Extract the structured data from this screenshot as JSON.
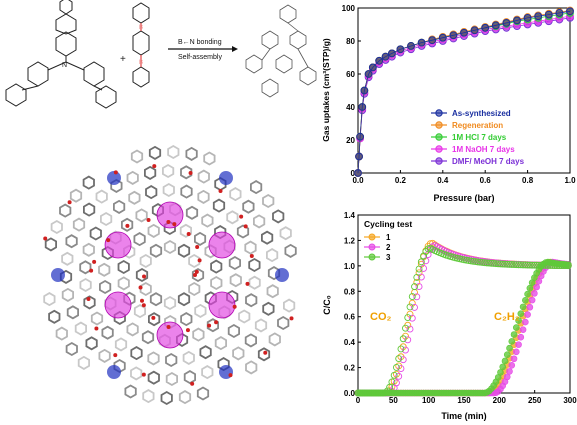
{
  "scheme": {
    "arrow_label_top": "B←N bonding",
    "arrow_label_bottom": "Self-assembly",
    "plus": "+"
  },
  "colors": {
    "as_synthesized": "#1a2fa0",
    "regeneration": "#f08a1e",
    "hcl": "#33cc33",
    "naoh": "#e833e8",
    "dmf": "#7b2fd6",
    "cyc1": "#f5a623",
    "cyc2": "#e64be6",
    "cyc3": "#5fc93a",
    "co2_label": "#f0a000",
    "c2h2_label": "#f0a000"
  },
  "chart_data": [
    {
      "type": "line",
      "xlabel": "Pressure (bar)",
      "ylabel": "Gas uptakes (cm³(STP)/g)",
      "xlim": [
        0,
        1.0
      ],
      "ylim": [
        0,
        100
      ],
      "xticks": [
        "0.0",
        "0.2",
        "0.4",
        "0.6",
        "0.8",
        "1.0"
      ],
      "yticks": [
        "0",
        "20",
        "40",
        "60",
        "80",
        "100"
      ],
      "legend_position": "bottom-right",
      "x": [
        0.0,
        0.005,
        0.01,
        0.02,
        0.03,
        0.05,
        0.07,
        0.1,
        0.13,
        0.16,
        0.2,
        0.25,
        0.3,
        0.35,
        0.4,
        0.45,
        0.5,
        0.55,
        0.6,
        0.65,
        0.7,
        0.75,
        0.8,
        0.85,
        0.9,
        0.95,
        1.0
      ],
      "series": [
        {
          "name": "As-synthesized",
          "values": [
            0,
            10,
            22,
            40,
            50,
            60,
            64,
            68,
            70.5,
            72.5,
            75,
            77,
            79,
            80.5,
            82,
            83.5,
            85,
            86.5,
            88,
            89.5,
            91,
            92.5,
            94,
            95,
            96,
            97,
            98
          ]
        },
        {
          "name": "Regeneration",
          "values": [
            0,
            10,
            22,
            40,
            50,
            60,
            64,
            68,
            70.5,
            72.5,
            75,
            77,
            79,
            81,
            82.5,
            84,
            85.5,
            87,
            88.5,
            90,
            91.5,
            93,
            94.5,
            95.5,
            96.5,
            97.5,
            98.5
          ]
        },
        {
          "name": "1M HCl 7 days",
          "values": [
            0,
            10,
            22,
            40,
            50,
            60,
            64,
            68,
            70.5,
            72.5,
            75,
            77,
            79,
            80.5,
            82,
            83.5,
            85,
            86.5,
            88,
            89,
            90.5,
            92,
            93,
            94,
            95,
            96,
            97
          ]
        },
        {
          "name": "1M NaOH 7 days",
          "values": [
            0,
            10,
            21,
            39,
            49,
            59,
            63,
            67,
            69.5,
            71.5,
            74,
            76,
            78,
            79.5,
            81,
            82.5,
            84,
            85.5,
            87,
            88,
            89,
            90,
            91,
            92,
            93,
            94,
            95
          ]
        },
        {
          "name": "DMF/ MeOH 7 days",
          "values": [
            0,
            10,
            21,
            38,
            48,
            58,
            62,
            66,
            68.5,
            70.5,
            73,
            75,
            77,
            78.5,
            80,
            81.5,
            83,
            84.5,
            86,
            87,
            88,
            89,
            90,
            91,
            92,
            93,
            94
          ]
        }
      ]
    },
    {
      "type": "scatter",
      "xlabel": "Time (min)",
      "ylabel": "C/C₀",
      "xlim": [
        0,
        300
      ],
      "ylim": [
        0,
        1.4
      ],
      "xticks": [
        "0",
        "50",
        "100",
        "150",
        "200",
        "250",
        "300"
      ],
      "yticks": [
        "0.0",
        "0.2",
        "0.4",
        "0.6",
        "0.8",
        "1.0",
        "1.2",
        "1.4"
      ],
      "legend_title": "Cycling test",
      "legend_position": "top-left",
      "annotations": [
        "CO₂",
        "C₂H₂"
      ],
      "series": [
        {
          "name": "1"
        },
        {
          "name": "2"
        },
        {
          "name": "3"
        }
      ]
    }
  ]
}
